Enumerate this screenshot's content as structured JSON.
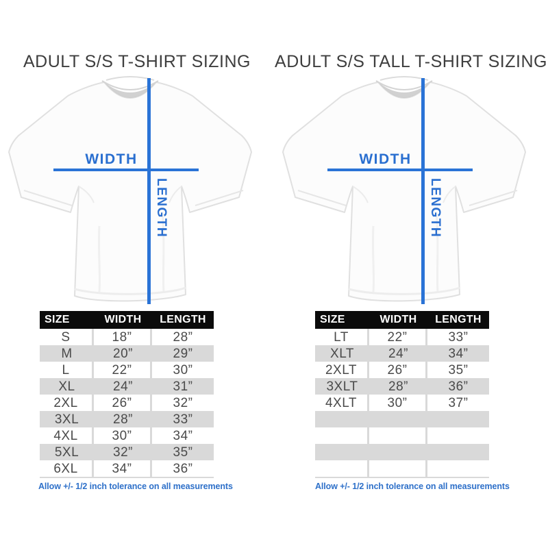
{
  "colors": {
    "accent_blue": "#2a73d6",
    "label_blue": "#2a6fd0",
    "note_blue": "#2e70c9",
    "header_bg": "#0b0b0b",
    "header_text": "#ffffff",
    "row_alt_gray": "#d9d9d9",
    "cell_text": "#4a4a4a",
    "title_text": "#3e3e3e"
  },
  "panels": [
    {
      "title": "ADULT S/S T-SHIRT SIZING",
      "shirt": {
        "width_label": "WIDTH",
        "length_label": "LENGTH"
      },
      "table": {
        "headers": [
          "SIZE",
          "WIDTH",
          "LENGTH"
        ],
        "rows": [
          [
            "S",
            "18”",
            "28”"
          ],
          [
            "M",
            "20”",
            "29”"
          ],
          [
            "L",
            "22”",
            "30”"
          ],
          [
            "XL",
            "24”",
            "31”"
          ],
          [
            "2XL",
            "26”",
            "32”"
          ],
          [
            "3XL",
            "28”",
            "33”"
          ],
          [
            "4XL",
            "30”",
            "34”"
          ],
          [
            "5XL",
            "32”",
            "35”"
          ],
          [
            "6XL",
            "34”",
            "36”"
          ]
        ]
      },
      "footer": "Allow +/- 1/2 inch tolerance on all measurements"
    },
    {
      "title": "ADULT S/S TALL T-SHIRT SIZING",
      "shirt": {
        "width_label": "WIDTH",
        "length_label": "LENGTH"
      },
      "table": {
        "headers": [
          "SIZE",
          "WIDTH",
          "LENGTH"
        ],
        "rows": [
          [
            "LT",
            "22”",
            "33”"
          ],
          [
            "XLT",
            "24”",
            "34”"
          ],
          [
            "2XLT",
            "26”",
            "35”"
          ],
          [
            "3XLT",
            "28”",
            "36”"
          ],
          [
            "4XLT",
            "30”",
            "37”"
          ],
          [
            "",
            "",
            ""
          ],
          [
            "",
            "",
            ""
          ],
          [
            "",
            "",
            ""
          ],
          [
            "",
            "",
            ""
          ]
        ]
      },
      "footer": "Allow +/- 1/2 inch tolerance on all measurements"
    }
  ]
}
